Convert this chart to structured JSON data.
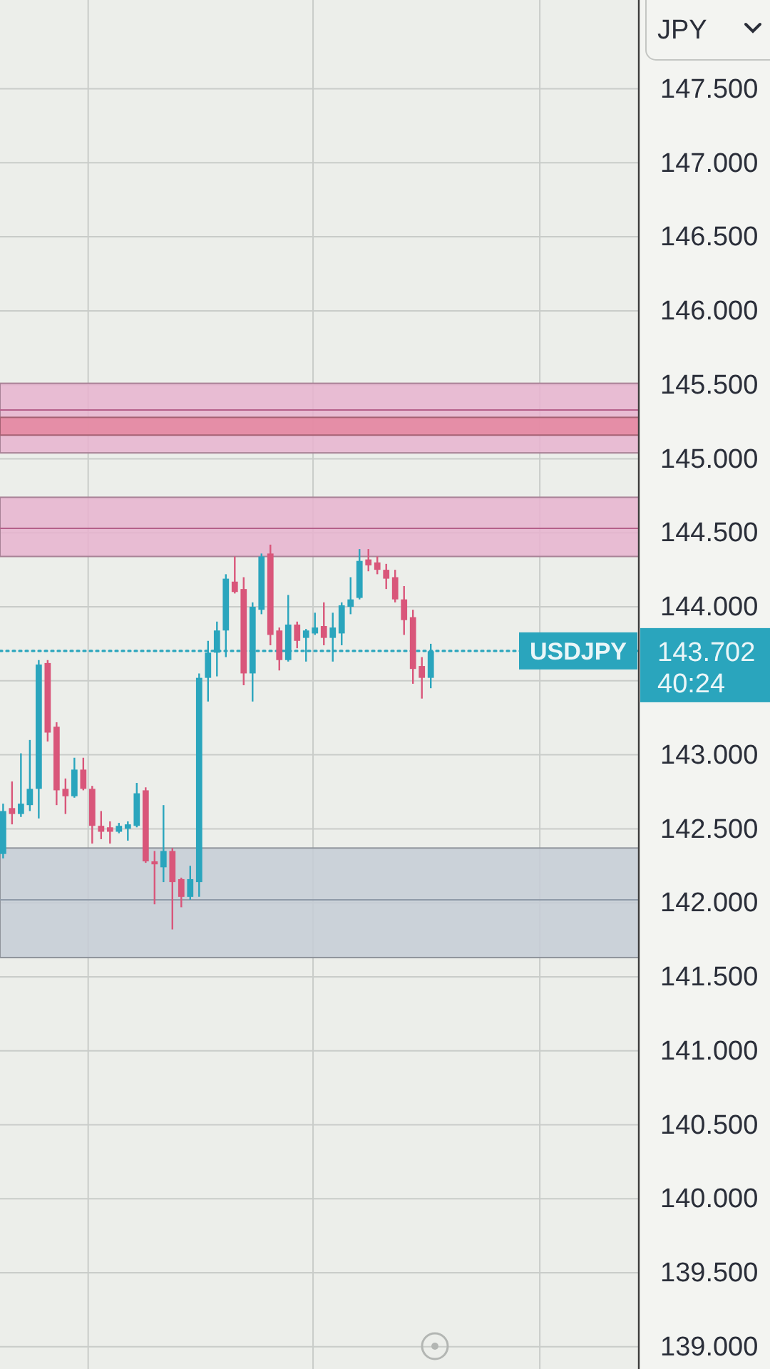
{
  "chart_data": {
    "type": "candlestick",
    "ylabel": "JPY",
    "categories": [
      null,
      null,
      null,
      null,
      null,
      null,
      null,
      null,
      null,
      null,
      null,
      null,
      null,
      null,
      null,
      null,
      null,
      null,
      null,
      null,
      null,
      null,
      null,
      null,
      null,
      null,
      null,
      null,
      null,
      null,
      null,
      null,
      null,
      null,
      null,
      null,
      null,
      null,
      null,
      null,
      null,
      null,
      null,
      null,
      null,
      null,
      null,
      null,
      null,
      null,
      null,
      null,
      null,
      null,
      null,
      null,
      null,
      null,
      null,
      null,
      null,
      null,
      null,
      null,
      null,
      null,
      null,
      null,
      null,
      null,
      null,
      null
    ],
    "ohlc": [
      [
        142.33,
        142.67,
        142.3,
        142.62
      ],
      [
        142.64,
        142.82,
        142.53,
        142.6
      ],
      [
        142.6,
        143.01,
        142.58,
        142.67
      ],
      [
        142.66,
        143.1,
        142.62,
        142.77
      ],
      [
        142.77,
        143.64,
        142.57,
        143.61
      ],
      [
        143.62,
        143.64,
        143.09,
        143.15
      ],
      [
        143.19,
        143.22,
        142.66,
        142.76
      ],
      [
        142.77,
        142.84,
        142.6,
        142.72
      ],
      [
        142.72,
        142.98,
        142.71,
        142.9
      ],
      [
        142.9,
        142.98,
        142.76,
        142.77
      ],
      [
        142.77,
        142.79,
        142.4,
        142.52
      ],
      [
        142.52,
        142.62,
        142.43,
        142.48
      ],
      [
        142.51,
        142.55,
        142.4,
        142.48
      ],
      [
        142.48,
        142.54,
        142.47,
        142.52
      ],
      [
        142.5,
        142.55,
        142.42,
        142.53
      ],
      [
        142.52,
        142.81,
        142.51,
        142.74
      ],
      [
        142.76,
        142.78,
        142.27,
        142.28
      ],
      [
        142.28,
        142.35,
        141.99,
        142.26
      ],
      [
        142.24,
        142.66,
        142.14,
        142.35
      ],
      [
        142.35,
        142.37,
        141.82,
        142.14
      ],
      [
        142.16,
        142.17,
        141.97,
        142.04
      ],
      [
        142.04,
        142.25,
        142.02,
        142.16
      ],
      [
        142.14,
        143.55,
        142.04,
        143.52
      ],
      [
        143.52,
        143.77,
        143.36,
        143.69
      ],
      [
        143.69,
        143.9,
        143.53,
        143.84
      ],
      [
        143.84,
        144.22,
        143.66,
        144.19
      ],
      [
        144.17,
        144.34,
        144.09,
        144.1
      ],
      [
        144.12,
        144.2,
        143.47,
        143.55
      ],
      [
        143.55,
        144.03,
        143.36,
        144.0
      ],
      [
        143.98,
        144.36,
        143.95,
        144.34
      ],
      [
        144.36,
        144.42,
        143.74,
        143.81
      ],
      [
        143.84,
        143.86,
        143.57,
        143.64
      ],
      [
        143.64,
        144.08,
        143.63,
        143.88
      ],
      [
        143.88,
        143.9,
        143.72,
        143.77
      ],
      [
        143.79,
        143.85,
        143.63,
        143.84
      ],
      [
        143.82,
        143.96,
        143.81,
        143.86
      ],
      [
        143.87,
        144.03,
        143.74,
        143.79
      ],
      [
        143.79,
        143.96,
        143.63,
        143.86
      ],
      [
        143.82,
        144.03,
        143.74,
        144.01
      ],
      [
        144.0,
        144.2,
        143.95,
        144.05
      ],
      [
        144.06,
        144.39,
        144.05,
        144.31
      ],
      [
        144.32,
        144.39,
        144.24,
        144.28
      ],
      [
        144.3,
        144.34,
        144.22,
        144.25
      ],
      [
        144.25,
        144.29,
        144.12,
        144.19
      ],
      [
        144.2,
        144.25,
        144.03,
        144.05
      ],
      [
        144.05,
        144.14,
        143.81,
        143.91
      ],
      [
        143.93,
        143.98,
        143.48,
        143.58
      ],
      [
        143.6,
        143.66,
        143.38,
        143.52
      ],
      [
        143.52,
        143.75,
        143.45,
        143.7
      ],
      null,
      null,
      null,
      null,
      null,
      null,
      null,
      null,
      null,
      null,
      null,
      null,
      null,
      null,
      null,
      null,
      null,
      null,
      null,
      null,
      null,
      null,
      null
    ],
    "colors": [
      "#2aa5bd",
      "#d9567a",
      "#2aa5bd",
      "#2aa5bd",
      "#2aa5bd",
      "#d9567a",
      "#d9567a",
      "#d9567a",
      "#2aa5bd",
      "#d9567a",
      "#d9567a",
      "#d9567a",
      "#d9567a",
      "#2aa5bd",
      "#2aa5bd",
      "#2aa5bd",
      "#d9567a",
      "#d9567a",
      "#2aa5bd",
      "#d9567a",
      "#d9567a",
      "#2aa5bd",
      "#2aa5bd",
      "#2aa5bd",
      "#2aa5bd",
      "#2aa5bd",
      "#d9567a",
      "#d9567a",
      "#2aa5bd",
      "#2aa5bd",
      "#d9567a",
      "#d9567a",
      "#2aa5bd",
      "#d9567a",
      "#2aa5bd",
      "#2aa5bd",
      "#d9567a",
      "#2aa5bd",
      "#2aa5bd",
      "#2aa5bd",
      "#2aa5bd",
      "#d9567a",
      "#d9567a",
      "#d9567a",
      "#d9567a",
      "#d9567a",
      "#d9567a",
      "#d9567a",
      "#2aa5bd",
      null,
      null,
      null,
      null,
      null,
      null,
      null,
      null,
      null,
      null,
      null,
      null,
      null,
      null,
      null,
      null,
      null,
      null,
      null,
      null,
      null,
      null,
      null
    ],
    "ylim": [
      138.85,
      148.1
    ],
    "yticks": [
      {
        "value": 139.0,
        "label": "139.000"
      },
      {
        "value": 139.5,
        "label": "139.500"
      },
      {
        "value": 140.0,
        "label": "140.000"
      },
      {
        "value": 140.5,
        "label": "140.500"
      },
      {
        "value": 141.0,
        "label": "141.000"
      },
      {
        "value": 141.5,
        "label": "141.500"
      },
      {
        "value": 142.0,
        "label": "142.000"
      },
      {
        "value": 142.5,
        "label": "142.500"
      },
      {
        "value": 143.0,
        "label": "143.000"
      },
      {
        "value": 143.5,
        "label": null
      },
      {
        "value": 144.0,
        "label": "144.000"
      },
      {
        "value": 144.5,
        "label": "144.500"
      },
      {
        "value": 145.0,
        "label": "145.000"
      },
      {
        "value": 145.5,
        "label": "145.500"
      },
      {
        "value": 146.0,
        "label": "146.000"
      },
      {
        "value": 146.5,
        "label": "146.500"
      },
      {
        "value": 147.0,
        "label": "147.000"
      },
      {
        "value": 147.5,
        "label": "147.500"
      }
    ],
    "grid": true,
    "bands": [
      {
        "axis": "y",
        "from": 145.04,
        "to": 145.51,
        "color": "#e8b3cf"
      },
      {
        "axis": "y",
        "from": 145.16,
        "to": 145.28,
        "color": "#e4869f"
      },
      {
        "axis": "y",
        "from": 144.34,
        "to": 144.74,
        "color": "#e8b3cf"
      },
      {
        "axis": "y",
        "from": 141.63,
        "to": 142.37,
        "color": "#c5ccd6"
      }
    ],
    "ref_lines": [
      {
        "axis": "y",
        "value": 145.33,
        "color": "#b5608a"
      },
      {
        "axis": "y",
        "value": 144.53,
        "color": "#b5608a"
      },
      {
        "axis": "y",
        "value": 142.02,
        "color": "#8f9aa8"
      },
      {
        "axis": "y",
        "value": 143.702,
        "label": "143.702",
        "color": "#2aa5bd",
        "line_style": "dotted"
      }
    ],
    "annotations": [
      {
        "text": "USDJPY",
        "y": 143.702
      },
      "40:24"
    ]
  }
}
